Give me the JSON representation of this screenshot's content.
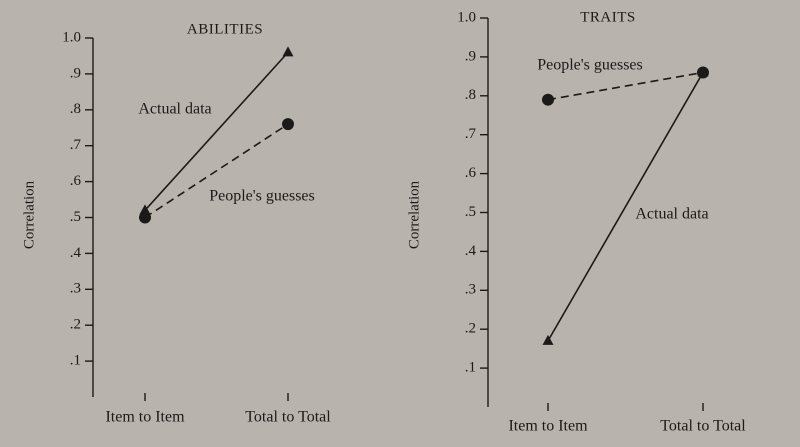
{
  "chart_data": [
    {
      "type": "line",
      "title": "ABILITIES",
      "ylabel": "Correlation",
      "categories": [
        "Item to Item",
        "Total to Total"
      ],
      "series": [
        {
          "name": "Actual data",
          "color": "#1c1a18",
          "dash": false,
          "marker": "triangle",
          "values": [
            0.52,
            0.96
          ]
        },
        {
          "name": "People's guesses",
          "color": "#1c1a18",
          "dash": true,
          "marker": "circle",
          "values": [
            0.5,
            0.76
          ]
        }
      ],
      "ylim": [
        0,
        1
      ],
      "yticks": [
        {
          "value": 0.1,
          "label": ".1"
        },
        {
          "value": 0.2,
          "label": ".2"
        },
        {
          "value": 0.3,
          "label": ".3"
        },
        {
          "value": 0.4,
          "label": ".4"
        },
        {
          "value": 0.5,
          "label": ".5"
        },
        {
          "value": 0.6,
          "label": ".6"
        },
        {
          "value": 0.7,
          "label": ".7"
        },
        {
          "value": 0.8,
          "label": ".8"
        },
        {
          "value": 0.9,
          "label": ".9"
        },
        {
          "value": 1.0,
          "label": "1.0"
        }
      ]
    },
    {
      "type": "line",
      "title": "TRAITS",
      "ylabel": "Correlation",
      "categories": [
        "Item to Item",
        "Total to Total"
      ],
      "series": [
        {
          "name": "Actual data",
          "color": "#1c1a18",
          "dash": false,
          "marker": "triangle",
          "values": [
            0.17,
            0.86
          ]
        },
        {
          "name": "People's guesses",
          "color": "#1c1a18",
          "dash": true,
          "marker": "circle",
          "values": [
            0.79,
            0.86
          ]
        }
      ],
      "ylim": [
        0,
        1
      ],
      "yticks": [
        {
          "value": 0.1,
          "label": ".1"
        },
        {
          "value": 0.2,
          "label": ".2"
        },
        {
          "value": 0.3,
          "label": ".3"
        },
        {
          "value": 0.4,
          "label": ".4"
        },
        {
          "value": 0.5,
          "label": ".5"
        },
        {
          "value": 0.6,
          "label": ".6"
        },
        {
          "value": 0.7,
          "label": ".7"
        },
        {
          "value": 0.8,
          "label": ".8"
        },
        {
          "value": 0.9,
          "label": ".9"
        },
        {
          "value": 1.0,
          "label": "1.0"
        }
      ]
    }
  ]
}
